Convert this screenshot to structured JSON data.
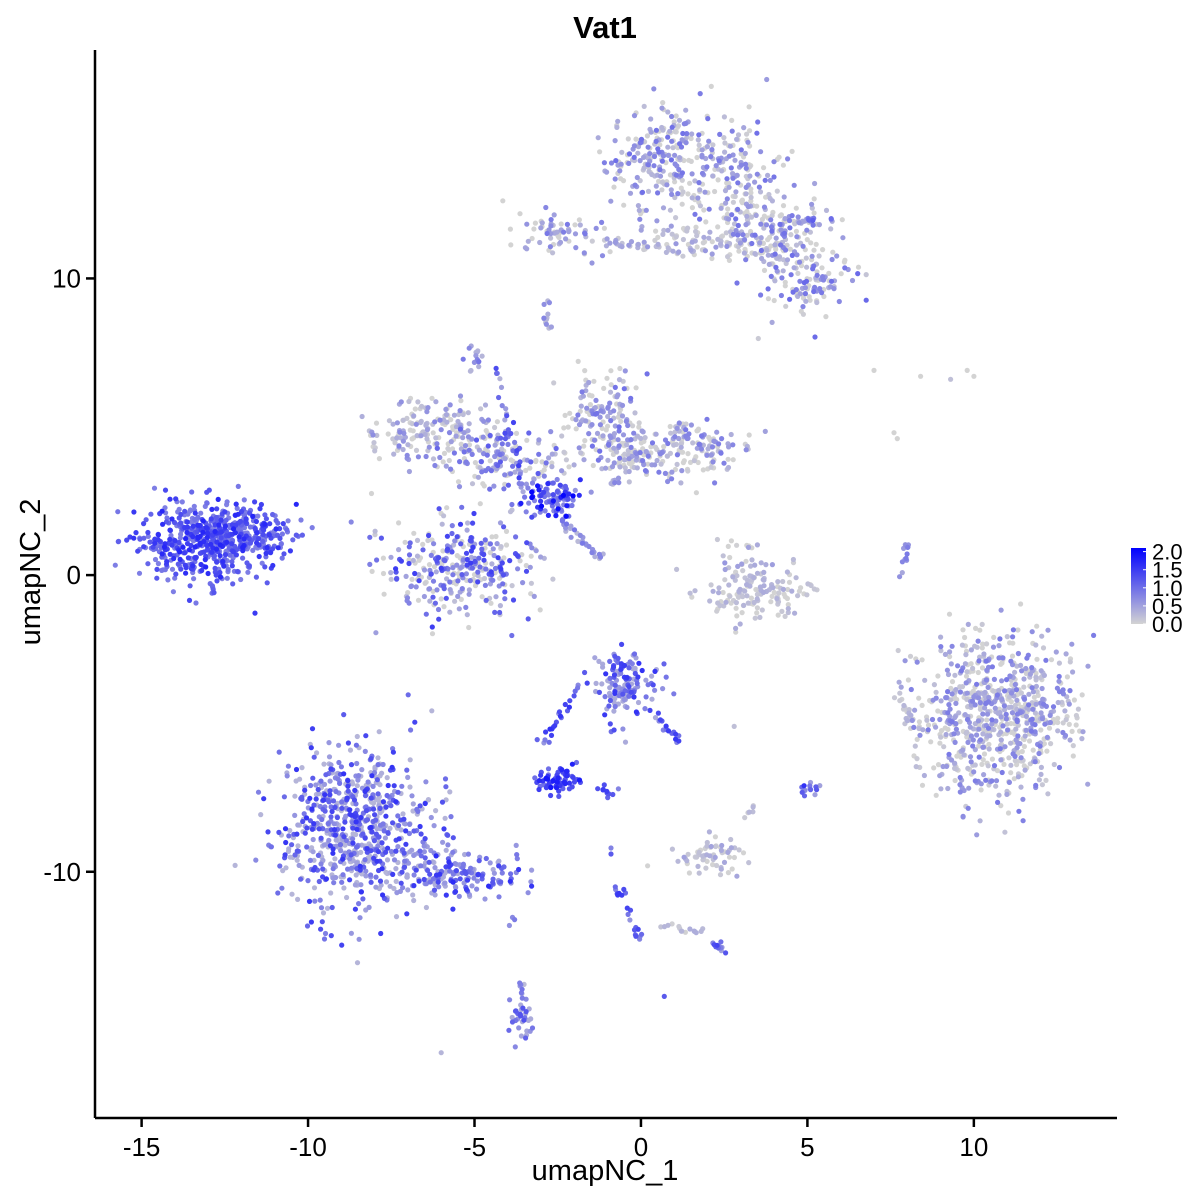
{
  "chart_data": {
    "type": "scatter",
    "title": "Vat1",
    "xlabel": "umapNC_1",
    "ylabel": "umapNC_2",
    "xlim": [
      -16.4,
      14.3
    ],
    "ylim": [
      -18.3,
      17.7
    ],
    "x_ticks": [
      -15,
      -10,
      -5,
      0,
      5,
      10
    ],
    "x_tick_labels": [
      "-15",
      "-10",
      "-5",
      "0",
      "5",
      "10"
    ],
    "y_ticks": [
      -10,
      0,
      10
    ],
    "y_tick_labels": [
      "-10",
      "0",
      "10"
    ],
    "grid": false,
    "color_low": "#d3d3d3",
    "color_high": "#0000ff",
    "legend": {
      "position": "right",
      "type": "colorbar",
      "range": [
        0,
        2.1
      ],
      "breaks": [
        0.0,
        0.5,
        1.0,
        1.5,
        2.0
      ],
      "labels": [
        "0.0",
        "0.5",
        "1.0",
        "1.5",
        "2.0"
      ]
    },
    "clusters": [
      {
        "cx": -13.0,
        "cy": 1.1,
        "sx": 1.05,
        "sy": 0.65,
        "n": 520,
        "expr": [
          0.85,
          1.75
        ]
      },
      {
        "cx": -11.7,
        "cy": 1.5,
        "sx": 0.6,
        "sy": 0.35,
        "n": 90,
        "expr": [
          0.8,
          1.5
        ]
      },
      {
        "cx": -8.6,
        "cy": -8.5,
        "sx": 1.15,
        "sy": 1.35,
        "n": 700,
        "expr": [
          0.3,
          1.6
        ]
      },
      {
        "cx": -6.0,
        "cy": -9.9,
        "sx": 1.0,
        "sy": 0.5,
        "n": 120,
        "expr": [
          0.4,
          1.6
        ]
      },
      {
        "cx": -4.8,
        "cy": -10.2,
        "sx": 0.8,
        "sy": 0.4,
        "n": 60,
        "expr": [
          0.6,
          1.7
        ]
      },
      {
        "cx": -5.5,
        "cy": 0.2,
        "sx": 1.1,
        "sy": 0.8,
        "n": 330,
        "expr": [
          0.0,
          1.5
        ]
      },
      {
        "cx": -6.2,
        "cy": 4.9,
        "sx": 0.85,
        "sy": 0.55,
        "n": 170,
        "expr": [
          0.0,
          0.8
        ]
      },
      {
        "cx": -4.1,
        "cy": 3.9,
        "sx": 0.9,
        "sy": 0.6,
        "n": 150,
        "expr": [
          0.0,
          1.2
        ]
      },
      {
        "cx": -2.7,
        "cy": 2.6,
        "sx": 0.45,
        "sy": 0.35,
        "n": 90,
        "expr": [
          0.8,
          2.1
        ]
      },
      {
        "cx": -1.2,
        "cy": 5.2,
        "sx": 0.55,
        "sy": 0.8,
        "n": 140,
        "expr": [
          0.0,
          1.0
        ]
      },
      {
        "cx": 1.6,
        "cy": 4.3,
        "sx": 0.9,
        "sy": 0.45,
        "n": 140,
        "expr": [
          0.0,
          0.9
        ]
      },
      {
        "cx": -0.3,
        "cy": 4.2,
        "sx": 0.6,
        "sy": 0.4,
        "n": 80,
        "expr": [
          0.0,
          0.9
        ]
      },
      {
        "cx": 0.6,
        "cy": 14.0,
        "sx": 0.75,
        "sy": 0.85,
        "n": 230,
        "expr": [
          0.0,
          1.0
        ]
      },
      {
        "cx": 2.8,
        "cy": 13.4,
        "sx": 0.7,
        "sy": 1.0,
        "n": 150,
        "expr": [
          0.0,
          1.0
        ]
      },
      {
        "cx": 3.9,
        "cy": 11.5,
        "sx": 0.9,
        "sy": 0.7,
        "n": 170,
        "expr": [
          0.0,
          1.0
        ]
      },
      {
        "cx": 5.0,
        "cy": 10.2,
        "sx": 0.65,
        "sy": 0.8,
        "n": 120,
        "expr": [
          0.0,
          1.1
        ]
      },
      {
        "cx": 2.0,
        "cy": 11.3,
        "sx": 0.9,
        "sy": 0.35,
        "n": 70,
        "expr": [
          0.0,
          0.6
        ]
      },
      {
        "cx": -2.5,
        "cy": 11.5,
        "sx": 0.7,
        "sy": 0.35,
        "n": 70,
        "expr": [
          0.0,
          0.9
        ]
      },
      {
        "cx": 3.4,
        "cy": -0.7,
        "sx": 0.8,
        "sy": 0.45,
        "n": 130,
        "expr": [
          0.0,
          0.4
        ]
      },
      {
        "cx": 3.2,
        "cy": 0.4,
        "sx": 0.4,
        "sy": 0.5,
        "n": 30,
        "expr": [
          0.0,
          0.6
        ]
      },
      {
        "cx": 10.7,
        "cy": -4.7,
        "sx": 1.15,
        "sy": 1.35,
        "n": 760,
        "expr": [
          0.0,
          0.9
        ]
      },
      {
        "cx": -0.5,
        "cy": -3.6,
        "sx": 0.5,
        "sy": 0.6,
        "n": 140,
        "expr": [
          0.4,
          1.6
        ]
      },
      {
        "cx": -2.5,
        "cy": -6.9,
        "sx": 0.28,
        "sy": 0.2,
        "n": 70,
        "expr": [
          1.0,
          1.9
        ]
      },
      {
        "cx": 2.2,
        "cy": -9.5,
        "sx": 0.5,
        "sy": 0.3,
        "n": 60,
        "expr": [
          0.0,
          0.5
        ]
      },
      {
        "cx": -3.6,
        "cy": -15.0,
        "sx": 0.2,
        "sy": 0.45,
        "n": 35,
        "expr": [
          0.4,
          1.3
        ]
      },
      {
        "cx": -5.0,
        "cy": 7.3,
        "sx": 0.15,
        "sy": 0.2,
        "n": 15,
        "expr": [
          0.3,
          1.0
        ]
      },
      {
        "cx": -2.8,
        "cy": 8.5,
        "sx": 0.15,
        "sy": 0.2,
        "n": 10,
        "expr": [
          0.2,
          0.8
        ]
      },
      {
        "cx": 5.0,
        "cy": -7.2,
        "sx": 0.15,
        "sy": 0.12,
        "n": 12,
        "expr": [
          0.5,
          1.4
        ]
      }
    ],
    "strands": [
      {
        "x0": -4.4,
        "y0": 7.0,
        "x1": -3.6,
        "y1": 3.3,
        "n": 25,
        "expr": [
          0.3,
          1.5
        ]
      },
      {
        "x0": -2.4,
        "y0": 1.8,
        "x1": -1.2,
        "y1": 0.6,
        "n": 30,
        "expr": [
          0.2,
          1.0
        ]
      },
      {
        "x0": -1.0,
        "y0": 3.0,
        "x1": 0.2,
        "y1": 4.0,
        "n": 15,
        "expr": [
          0.0,
          1.0
        ]
      },
      {
        "x0": -1.1,
        "y0": 11.2,
        "x1": 1.0,
        "y1": 11.0,
        "n": 30,
        "expr": [
          0.0,
          0.6
        ]
      },
      {
        "x0": 4.5,
        "y0": 12.0,
        "x1": 5.8,
        "y1": 11.9,
        "n": 20,
        "expr": [
          0.0,
          1.2
        ]
      },
      {
        "x0": 8.0,
        "y0": 1.1,
        "x1": 7.8,
        "y1": 0.0,
        "n": 14,
        "expr": [
          0.3,
          1.1
        ]
      },
      {
        "x0": 7.7,
        "y0": -4.0,
        "x1": 8.2,
        "y1": -5.0,
        "n": 18,
        "expr": [
          0.0,
          0.4
        ]
      },
      {
        "x0": -3.0,
        "y0": -5.7,
        "x1": -1.5,
        "y1": -3.1,
        "n": 25,
        "expr": [
          0.6,
          1.7
        ]
      },
      {
        "x0": 0.2,
        "y0": -4.5,
        "x1": 1.2,
        "y1": -5.6,
        "n": 18,
        "expr": [
          0.5,
          1.6
        ]
      },
      {
        "x0": -1.2,
        "y0": -7.1,
        "x1": -0.8,
        "y1": -7.4,
        "n": 8,
        "expr": [
          0.7,
          1.5
        ]
      },
      {
        "x0": -0.8,
        "y0": -10.3,
        "x1": -0.3,
        "y1": -11.5,
        "n": 12,
        "expr": [
          0.6,
          1.6
        ]
      },
      {
        "x0": -0.2,
        "y0": -11.8,
        "x1": 0.0,
        "y1": -12.3,
        "n": 8,
        "expr": [
          0.6,
          1.5
        ]
      },
      {
        "x0": 0.5,
        "y0": -11.8,
        "x1": 2.0,
        "y1": -12.1,
        "n": 15,
        "expr": [
          0.0,
          0.4
        ]
      },
      {
        "x0": 2.2,
        "y0": -12.4,
        "x1": 2.6,
        "y1": -12.7,
        "n": 14,
        "expr": [
          0.5,
          1.5
        ]
      },
      {
        "x0": -3.9,
        "y0": -11.6,
        "x1": -3.9,
        "y1": -11.8,
        "n": 3,
        "expr": [
          0.3,
          1.0
        ]
      },
      {
        "x0": -3.6,
        "y0": -13.7,
        "x1": -3.5,
        "y1": -14.4,
        "n": 6,
        "expr": [
          0.2,
          1.0
        ]
      },
      {
        "x0": 3.0,
        "y0": -8.5,
        "x1": 3.4,
        "y1": -7.8,
        "n": 6,
        "expr": [
          0.0,
          0.3
        ]
      },
      {
        "x0": -2.8,
        "y0": 9.3,
        "x1": -2.8,
        "y1": 8.9,
        "n": 4,
        "expr": [
          0.2,
          0.8
        ]
      }
    ],
    "scattered_points": [
      {
        "x": 7.0,
        "y": 6.9,
        "expr": 0.0
      },
      {
        "x": 8.4,
        "y": 6.7,
        "expr": 0.0
      },
      {
        "x": 9.3,
        "y": 6.6,
        "expr": 0.2
      },
      {
        "x": 9.8,
        "y": 6.9,
        "expr": 0.0
      },
      {
        "x": 10.0,
        "y": 6.7,
        "expr": 0.0
      },
      {
        "x": 7.6,
        "y": 4.8,
        "expr": 0.0
      },
      {
        "x": 7.7,
        "y": 4.6,
        "expr": 0.0
      },
      {
        "x": -0.9,
        "y": -9.4,
        "expr": 1.2
      },
      {
        "x": 0.2,
        "y": -9.8,
        "expr": 0.0
      },
      {
        "x": 0.7,
        "y": -14.2,
        "expr": 1.2
      },
      {
        "x": -6.0,
        "y": -16.1,
        "expr": 0.3
      },
      {
        "x": -1.3,
        "y": -7.2,
        "expr": 1.3
      },
      {
        "x": -1.0,
        "y": -7.5,
        "expr": 1.1
      },
      {
        "x": 2.8,
        "y": -5.1,
        "expr": 0.2
      },
      {
        "x": 4.9,
        "y": -7.1,
        "expr": 1.6
      },
      {
        "x": -0.9,
        "y": -9.2,
        "expr": 0.8
      }
    ]
  }
}
